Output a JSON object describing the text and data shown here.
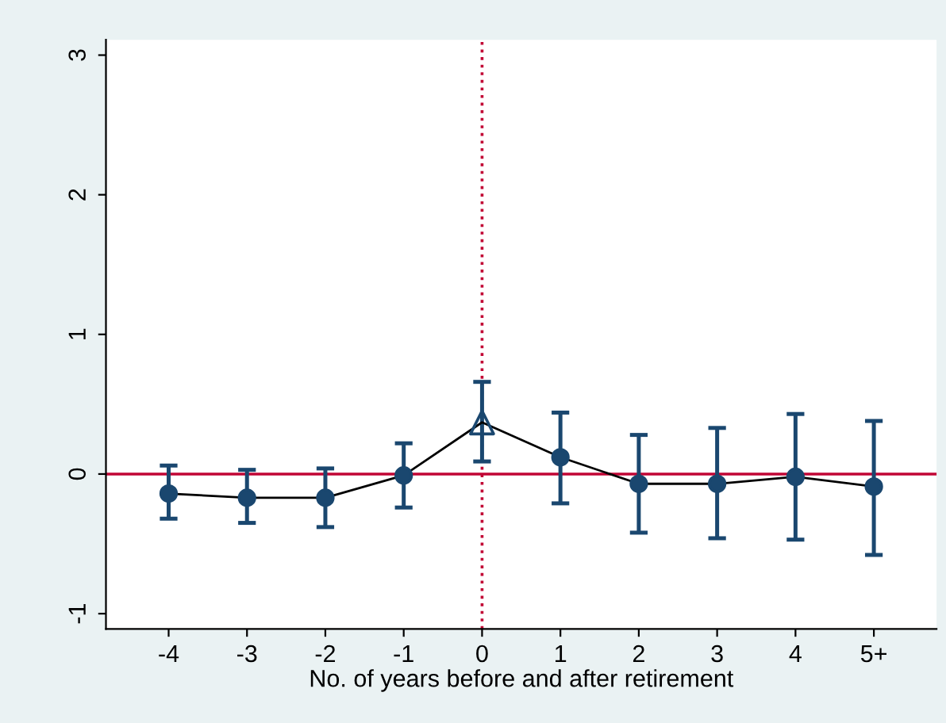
{
  "chart_data": {
    "type": "line",
    "xlabel": "No. of years before and after retirement",
    "categories": [
      "-4",
      "-3",
      "-2",
      "-1",
      "0",
      "1",
      "2",
      "3",
      "4",
      "5+"
    ],
    "series": [
      {
        "color": "#000000",
        "marker": "none",
        "values": [
          -0.14,
          -0.17,
          -0.17,
          -0.01,
          0.37,
          0.12,
          -0.07,
          -0.07,
          -0.02,
          -0.09
        ]
      },
      {
        "type": "scatter",
        "color": "#1a476f",
        "marker": "circle",
        "values": [
          -0.14,
          -0.17,
          -0.17,
          -0.01,
          null,
          0.12,
          -0.07,
          -0.07,
          -0.02,
          -0.09
        ],
        "errors": [
          [
            -0.32,
            0.06
          ],
          [
            -0.35,
            0.03
          ],
          [
            -0.38,
            0.04
          ],
          [
            -0.24,
            0.22
          ],
          null,
          [
            -0.21,
            0.44
          ],
          [
            -0.42,
            0.28
          ],
          [
            -0.46,
            0.33
          ],
          [
            -0.47,
            0.43
          ],
          [
            -0.58,
            0.38
          ]
        ]
      },
      {
        "type": "scatter",
        "color": "#1a476f",
        "marker": "triangle",
        "values": [
          null,
          null,
          null,
          null,
          0.37,
          null,
          null,
          null,
          null,
          null
        ],
        "errors": [
          null,
          null,
          null,
          null,
          [
            0.09,
            0.66
          ],
          null,
          null,
          null,
          null,
          null
        ]
      }
    ],
    "ylim": [
      -1.11,
      3.11
    ],
    "yticks": [
      {
        "value": -1,
        "label": "-1"
      },
      0,
      1,
      2,
      3
    ],
    "ref_lines": [
      {
        "axis": "y",
        "value": 0,
        "color": "#c10534",
        "line_style": "solid"
      },
      {
        "axis": "x",
        "value": "0",
        "color": "#c10534",
        "line_style": "dotted"
      }
    ],
    "grid": false
  }
}
